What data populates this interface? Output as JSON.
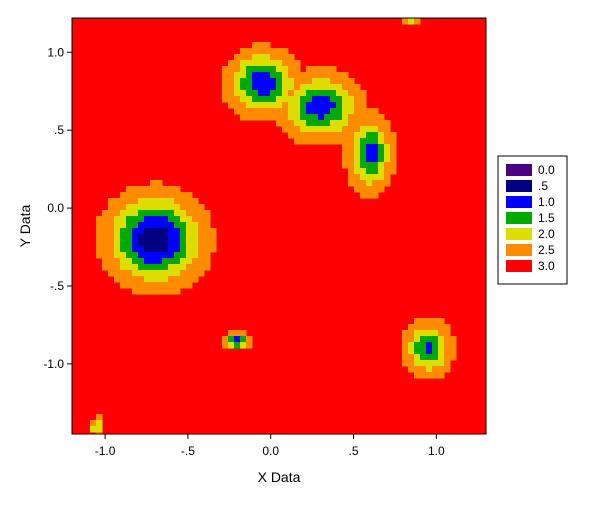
{
  "chart_data": {
    "type": "heatmap",
    "title": "",
    "xlabel": "X Data",
    "ylabel": "Y Data",
    "xlim": [
      -1.2,
      1.3
    ],
    "ylim": [
      -1.45,
      1.22
    ],
    "x_ticks": [
      {
        "value": -1.0,
        "label": "-1.0"
      },
      {
        "value": -0.5,
        "label": "-.5"
      },
      {
        "value": 0.0,
        "label": "0.0"
      },
      {
        "value": 0.5,
        "label": ".5"
      },
      {
        "value": 1.0,
        "label": "1.0"
      }
    ],
    "y_ticks": [
      {
        "value": 1.0,
        "label": "1.0"
      },
      {
        "value": 0.5,
        "label": ".5"
      },
      {
        "value": 0.0,
        "label": "0.0"
      },
      {
        "value": -0.5,
        "label": "-.5"
      },
      {
        "value": -1.0,
        "label": "-1.0"
      }
    ],
    "legend": {
      "placement": "right",
      "levels": [
        {
          "value": 0.0,
          "label": "0.0",
          "color": "#4b0082"
        },
        {
          "value": 0.5,
          "label": ".5",
          "color": "#000080"
        },
        {
          "value": 1.0,
          "label": "1.0",
          "color": "#0000ff"
        },
        {
          "value": 1.5,
          "label": "1.5",
          "color": "#00aa00"
        },
        {
          "value": 2.0,
          "label": "2.0",
          "color": "#dddd00"
        },
        {
          "value": 2.5,
          "label": "2.5",
          "color": "#ff8c00"
        },
        {
          "value": 3.0,
          "label": "3.0",
          "color": "#ff0000"
        }
      ]
    },
    "regions": [
      {
        "cx": -0.7,
        "cy": -0.2,
        "rx": 0.3,
        "ry": 0.3,
        "min": 0.4
      },
      {
        "cx": -0.05,
        "cy": 0.8,
        "rx": 0.22,
        "ry": 0.22,
        "min": 0.9
      },
      {
        "cx": 0.3,
        "cy": 0.65,
        "rx": 0.25,
        "ry": 0.22,
        "min": 0.95
      },
      {
        "cx": 0.6,
        "cy": 0.35,
        "rx": 0.14,
        "ry": 0.25,
        "min": 1.0
      },
      {
        "cx": 0.95,
        "cy": -0.9,
        "rx": 0.15,
        "ry": 0.18,
        "min": 1.2
      },
      {
        "cx": -0.2,
        "cy": -0.85,
        "rx": 0.08,
        "ry": 0.05,
        "min": 0.7
      },
      {
        "cx": 0.85,
        "cy": 1.22,
        "rx": 0.05,
        "ry": 0.04,
        "min": 1.5
      },
      {
        "cx": -1.05,
        "cy": -1.4,
        "rx": 0.04,
        "ry": 0.06,
        "min": 1.5
      }
    ]
  }
}
